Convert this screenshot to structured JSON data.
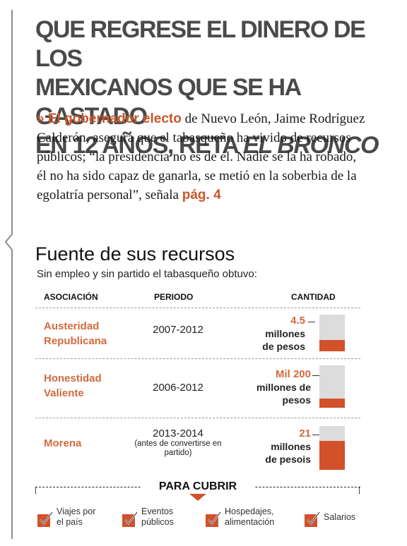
{
  "headline": {
    "line1": "QUE REGRESE EL DINERO DE LOS",
    "line2": "MEXICANOS QUE SE HA GASTADO",
    "line3_plain": "EN 12 AÑOS, RETA ",
    "line3_italic": "EL BRONCO"
  },
  "lede": {
    "marker": "» El gobernador electo",
    "body": " de Nuevo León, Jaime Rodríguez Calderón, asegura que el tabasqueño ha vivido de recursos públicos; “la presidencia no es de él. Nadie se la ha robado, él no ha sido capaz de ganarla, se metió en la soberbia de la egolatría personal”, señala ",
    "page_ref": "pág. 4"
  },
  "section": {
    "title": "Fuente de sus recursos",
    "subtitle": "Sin empleo y sin partido el tabasqueño obtuvo:"
  },
  "table": {
    "headers": {
      "association": "ASOCIACIÓN",
      "period": "PERIODO",
      "amount": "CANTIDAD"
    },
    "rows": [
      {
        "assoc_line1": "Austeridad",
        "assoc_line2": "Republicana",
        "period": "2007-2012",
        "period_note": "",
        "amount_num": "4.5",
        "amount_line1": "millones",
        "amount_line2": "de pesos",
        "bar_fraction": 0.3
      },
      {
        "assoc_line1": "Honestidad",
        "assoc_line2": "Valiente",
        "period": "2006-2012",
        "period_note": "",
        "amount_num": "Mil 200",
        "amount_line1": "millones de",
        "amount_line2": "pesos",
        "bar_fraction": 0.22
      },
      {
        "assoc_line1": "Morena",
        "assoc_line2": "",
        "period": "2013-2014",
        "period_note": "(antes de convertirse en partido)",
        "amount_num": "21",
        "amount_line1": "millones",
        "amount_line2": "de pesois",
        "bar_fraction": 0.66
      }
    ]
  },
  "cubrir": {
    "title": "PARA CUBRIR",
    "items": [
      {
        "line1": "Viajes por",
        "line2": "el país"
      },
      {
        "line1": "Eventos",
        "line2": "públicos"
      },
      {
        "line1": "Hospedajes,",
        "line2": "alimentación"
      },
      {
        "line1": "Salarios",
        "line2": ""
      }
    ]
  },
  "colors": {
    "accent": "#d2502a",
    "headline": "#4a4a4a",
    "bar_track": "#dcdcdc"
  }
}
